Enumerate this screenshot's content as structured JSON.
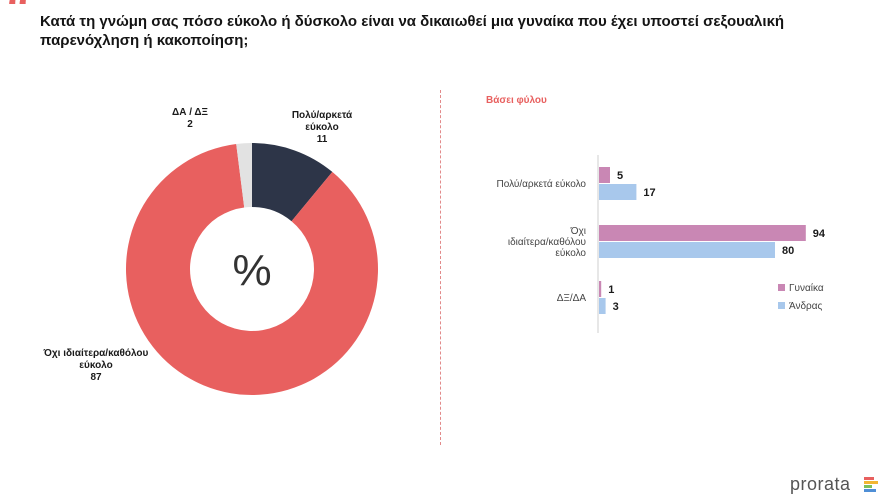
{
  "question": "Κατά τη γνώμη σας πόσο εύκολο ή δύσκολο είναι να δικαιωθεί μια γυναίκα που έχει υποστεί σεξουαλική παρενόχληση ή κακοποίηση;",
  "donut_center": "%",
  "bar_subtitle": "Βάσει φύλου",
  "logo_text": "prorata",
  "colors": {
    "accent": "#e8605f",
    "donut_easy": "#2d3548",
    "donut_not_easy": "#e8605f",
    "donut_dk": "#e2e2e2",
    "women": "#c987b4",
    "men": "#a8c8ec"
  },
  "chart_data": [
    {
      "type": "pie",
      "slices": [
        {
          "label_lines": [
            "Πολύ/αρκετά",
            "εύκολο"
          ],
          "value": 11
        },
        {
          "label_lines": [
            "Όχι ιδιαίτερα/καθόλου",
            "εύκολο"
          ],
          "value": 87
        },
        {
          "label_lines": [
            "ΔΑ / ΔΞ"
          ],
          "value": 2
        }
      ]
    },
    {
      "type": "bar",
      "orientation": "horizontal",
      "title": "Βάσει φύλου",
      "categories": [
        [
          "Πολύ/αρκετά εύκολο"
        ],
        [
          "Όχι",
          "ιδιαίτερα/καθόλου",
          "εύκολο"
        ],
        [
          "ΔΞ/ΔΑ"
        ]
      ],
      "series": [
        {
          "name": "Γυναίκα",
          "values": [
            5,
            94,
            1
          ]
        },
        {
          "name": "Άνδρας",
          "values": [
            17,
            80,
            3
          ]
        }
      ],
      "xlim": [
        0,
        100
      ],
      "legend": "right"
    }
  ]
}
